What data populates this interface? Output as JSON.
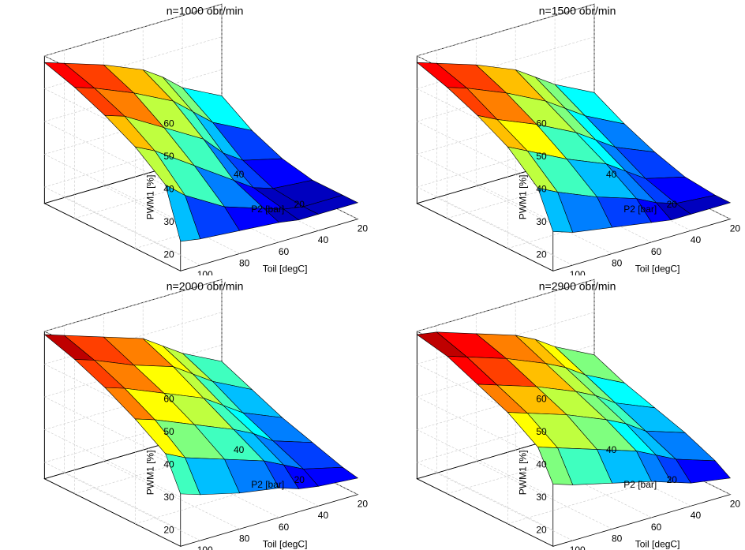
{
  "layout": {
    "rows": 2,
    "cols": 2,
    "subplot_width": 472,
    "subplot_height": 348
  },
  "common": {
    "xlabel": "Toil [degC]",
    "ylabel": "P2 [bar]",
    "zlabel": "PWM1 [%]",
    "x_ticks": [
      20,
      40,
      60,
      80,
      100
    ],
    "y_ticks": [
      20,
      40
    ],
    "z_ticks": [
      20,
      30,
      40,
      50,
      60
    ],
    "x_values": [
      20,
      40,
      50,
      60,
      80,
      100,
      110
    ],
    "y_values": [
      5,
      10,
      20,
      30,
      40,
      50
    ],
    "xlim": [
      110,
      20
    ],
    "ylim": [
      5,
      50
    ],
    "zlim": [
      15,
      60
    ],
    "colormap_range": [
      20,
      60
    ],
    "colormap": [
      "#0000bf",
      "#0000ff",
      "#003fff",
      "#007fff",
      "#00bfff",
      "#00ffff",
      "#3fffbf",
      "#7fff7f",
      "#bfff3f",
      "#ffff00",
      "#ffbf00",
      "#ff7f00",
      "#ff3f00",
      "#ff0000",
      "#bf0000",
      "#7f0000"
    ],
    "edge_color": "#000000",
    "edge_width": 0.6,
    "grid_color": "#c8c8c8",
    "pane_edge": "#000000",
    "background": "#ffffff",
    "title_fontsize": 14,
    "label_fontsize": 12,
    "tick_fontsize": 12,
    "view_azimuth": -37.5,
    "view_elevation": 30
  },
  "panels": [
    {
      "title": "n=1000 obr/min",
      "z": [
        [
          20,
          20,
          20,
          21,
          22,
          23,
          24
        ],
        [
          20,
          20,
          21,
          23,
          27,
          34,
          39
        ],
        [
          20,
          21,
          23,
          27,
          35,
          43,
          46
        ],
        [
          22,
          25,
          29,
          35,
          42,
          49,
          51
        ],
        [
          26,
          32,
          37,
          42,
          48,
          53,
          55
        ],
        [
          32,
          38,
          43,
          47,
          52,
          56,
          58
        ]
      ]
    },
    {
      "title": "n=1500 obr/min",
      "z": [
        [
          20,
          20,
          20,
          21,
          23,
          25,
          27
        ],
        [
          20,
          21,
          23,
          26,
          30,
          35,
          38
        ],
        [
          21,
          24,
          28,
          32,
          37,
          43,
          46
        ],
        [
          24,
          29,
          33,
          37,
          43,
          48,
          51
        ],
        [
          28,
          34,
          38,
          42,
          48,
          53,
          55
        ],
        [
          33,
          39,
          43,
          47,
          52,
          56,
          58
        ]
      ]
    },
    {
      "title": "n=2000 obr/min",
      "z": [
        [
          20,
          21,
          22,
          24,
          26,
          29,
          31
        ],
        [
          21,
          24,
          27,
          30,
          34,
          38,
          41
        ],
        [
          24,
          28,
          32,
          35,
          40,
          45,
          47
        ],
        [
          27,
          32,
          36,
          40,
          45,
          50,
          52
        ],
        [
          31,
          37,
          41,
          45,
          49,
          54,
          56
        ],
        [
          35,
          41,
          45,
          49,
          53,
          57,
          59
        ]
      ]
    },
    {
      "title": "n=2900 obr/min",
      "z": [
        [
          20,
          22,
          24,
          26,
          29,
          32,
          34
        ],
        [
          23,
          27,
          30,
          33,
          37,
          41,
          43
        ],
        [
          27,
          31,
          35,
          38,
          43,
          47,
          49
        ],
        [
          30,
          35,
          39,
          42,
          47,
          51,
          53
        ],
        [
          33,
          39,
          43,
          46,
          51,
          55,
          57
        ],
        [
          37,
          43,
          47,
          50,
          54,
          58,
          59
        ]
      ]
    }
  ]
}
